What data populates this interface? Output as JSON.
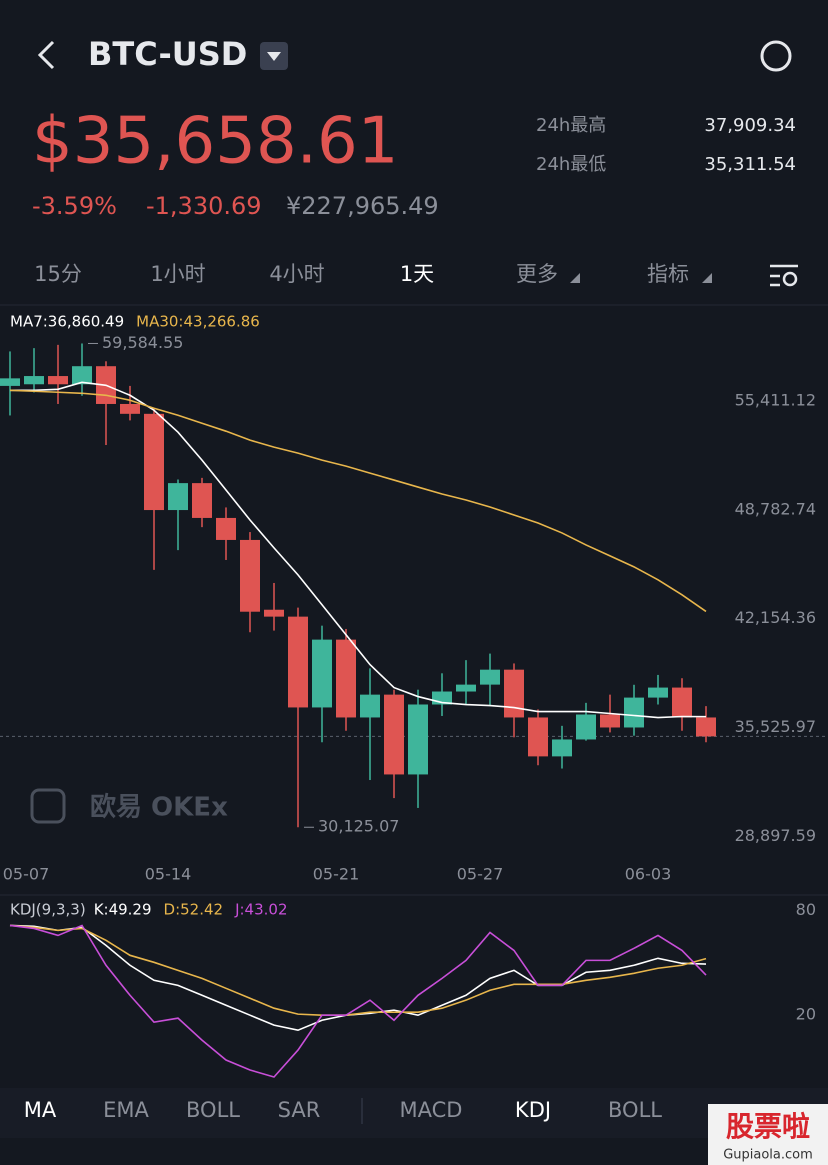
{
  "header": {
    "symbol": "BTC-USD",
    "price": "$35,658.61",
    "change_pct": "-3.59%",
    "change": "-1,330.69",
    "cny": "¥227,965.49",
    "high_label": "24h最高",
    "high": "37,909.34",
    "low_label": "24h最低",
    "low": "35,311.54"
  },
  "periods": [
    "15分",
    "1小时",
    "4小时",
    "1天",
    "更多",
    "指标"
  ],
  "watermark": "欧易 OKEx",
  "indicator_tabs": [
    "MA",
    "EMA",
    "BOLL",
    "SAR",
    "MACD",
    "KDJ",
    "BOLL"
  ],
  "badge": {
    "title": "股票啦",
    "url": "Gupiaola.com"
  },
  "chart_data": [
    {
      "type": "candlestick",
      "up_color": "#3fb59b",
      "down_color": "#df5552",
      "categories": [
        "05-07",
        null,
        null,
        null,
        null,
        null,
        null,
        "05-14",
        null,
        null,
        null,
        null,
        null,
        null,
        "05-21",
        null,
        null,
        null,
        null,
        null,
        "05-27",
        null,
        null,
        null,
        null,
        null,
        null,
        "06-03",
        null,
        null
      ],
      "open": [
        57000,
        57100,
        57600,
        57100,
        58200,
        55900,
        55300,
        49440,
        51080,
        48960,
        47620,
        43370,
        42950,
        37420,
        41550,
        36810,
        38200,
        33340,
        37600,
        38390,
        38810,
        39720,
        36810,
        34440,
        35470,
        36990,
        36200,
        38020,
        38630,
        36810
      ],
      "high": [
        59100,
        59300,
        59500,
        59584.55,
        58500,
        57000,
        55600,
        51300,
        51400,
        49600,
        48100,
        45000,
        43500,
        42400,
        42200,
        39800,
        38500,
        38500,
        39500,
        40300,
        40700,
        40100,
        37300,
        36300,
        37700,
        38200,
        38800,
        39400,
        39200,
        37500
      ],
      "low": [
        55200,
        56600,
        55900,
        56400,
        53400,
        54900,
        45800,
        47000,
        48400,
        46400,
        42000,
        42100,
        30125.07,
        35300,
        36000,
        33000,
        31900,
        31300,
        36900,
        37600,
        37500,
        35600,
        33900,
        33700,
        35400,
        35900,
        35700,
        37600,
        36000,
        35300
      ],
      "close": [
        57460,
        57600,
        57100,
        58200,
        55900,
        55300,
        49440,
        51080,
        48960,
        47620,
        43250,
        42950,
        37420,
        41550,
        36810,
        38200,
        33340,
        37600,
        38390,
        38810,
        39720,
        36810,
        34440,
        35470,
        36990,
        36200,
        38020,
        38630,
        36810,
        35658.61
      ],
      "max_label": "59,584.55",
      "min_label": "30,125.07",
      "series": [
        {
          "name": "MA7:36,860.49",
          "color": "#ffffff",
          "values": [
            56734,
            56734,
            56795,
            57220,
            57037,
            56430,
            55518,
            54182,
            52481,
            50658,
            48836,
            47135,
            45495,
            43672,
            41850,
            40027,
            38630,
            38083,
            37719,
            37598,
            37537,
            37415,
            37172,
            37172,
            37172,
            37051,
            36929,
            36807,
            36868,
            36860.49
          ]
        },
        {
          "name": "MA30:43,266.86",
          "color": "#e8b64c",
          "values": [
            56734,
            56674,
            56613,
            56552,
            56430,
            56127,
            55641,
            55215,
            54729,
            54243,
            53697,
            53271,
            52907,
            52481,
            52117,
            51691,
            51266,
            50841,
            50416,
            50051,
            49626,
            49140,
            48654,
            48046,
            47317,
            46649,
            45981,
            45191,
            44280,
            43266.86
          ]
        }
      ],
      "ylim": [
        28800,
        60100
      ],
      "yticks": [
        {
          "value": 55411.12,
          "label": "55,411.12"
        },
        {
          "value": 48782.74,
          "label": "48,782.74"
        },
        {
          "value": 42154.36,
          "label": "42,154.36"
        },
        {
          "value": 35525.97,
          "label": "35,525.97"
        },
        {
          "value": 28897.59,
          "label": "28,897.59"
        }
      ]
    },
    {
      "type": "line",
      "title": "KDJ(9,3,3)",
      "series": [
        {
          "name": "K:49.29",
          "color": "#ffffff",
          "values": [
            71.4,
            70.9,
            68.6,
            70.3,
            60,
            48.6,
            40,
            37.1,
            31.4,
            25.7,
            20,
            14.3,
            11.4,
            17.1,
            20,
            21.1,
            22.9,
            20,
            25.7,
            31.4,
            41.1,
            45.7,
            37.1,
            37.1,
            44.6,
            45.7,
            48.6,
            52.6,
            49.7,
            49.29
          ]
        },
        {
          "name": "D:52.42",
          "color": "#e8b64c",
          "values": [
            71.4,
            70.3,
            68.6,
            69.7,
            62.9,
            54.3,
            50.3,
            45.7,
            41.1,
            35.4,
            29.7,
            24,
            20.6,
            20,
            20,
            21.7,
            21.7,
            21.7,
            24,
            28.6,
            34.3,
            37.7,
            37.7,
            37.7,
            40,
            41.7,
            44,
            46.9,
            48.6,
            52.42
          ]
        },
        {
          "name": "J:43.02",
          "color": "#c84fd8",
          "values": [
            71.4,
            69.7,
            65.7,
            71.4,
            48.6,
            31.4,
            16,
            18.3,
            5.7,
            -5.7,
            -11.4,
            -15.4,
            0,
            20,
            20,
            28.6,
            17.1,
            31.4,
            41.1,
            51.4,
            67.4,
            57.1,
            37.1,
            37.1,
            51.4,
            51.4,
            58.3,
            65.7,
            57.1,
            43.02
          ]
        }
      ],
      "ylim": [
        -20,
        86
      ],
      "yticks": [
        20,
        80
      ]
    }
  ]
}
